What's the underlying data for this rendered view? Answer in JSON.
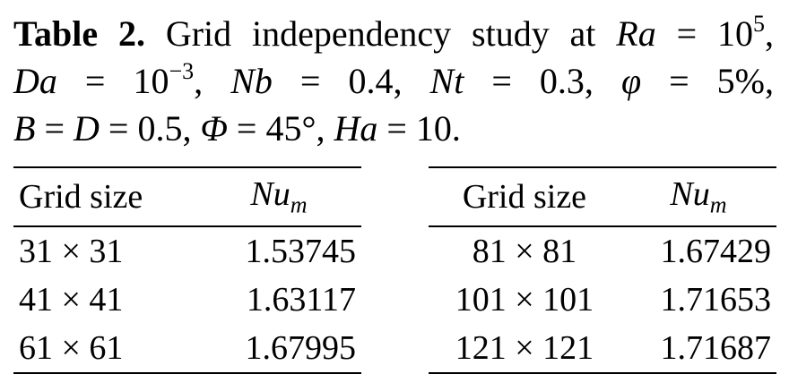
{
  "caption": {
    "label": "Table 2.",
    "parts": [
      "Grid independency study at ",
      "Ra",
      " = 10",
      "5",
      ",",
      "Da",
      " = 10",
      "−3",
      ", ",
      "Nb",
      " = 0.4, ",
      "Nt",
      " = 0.3, ",
      "φ",
      " = 5%,",
      "B",
      " = ",
      "D",
      " = 0.5, ",
      "Φ",
      " = 45°, ",
      "Ha",
      " = 10."
    ]
  },
  "tables": [
    {
      "header": [
        "Grid size",
        {
          "base": "Nu",
          "sub": "m"
        }
      ],
      "rows": [
        [
          "31 × 31",
          1.53745
        ],
        [
          "41 × 41",
          1.63117
        ],
        [
          "61 × 61",
          1.67995
        ]
      ]
    },
    {
      "header": [
        "Grid size",
        {
          "base": "Nu",
          "sub": "m"
        }
      ],
      "rows": [
        [
          "81 × 81",
          1.67429
        ],
        [
          "101 × 101",
          1.71653
        ],
        [
          "121 × 121",
          1.71687
        ]
      ]
    }
  ]
}
